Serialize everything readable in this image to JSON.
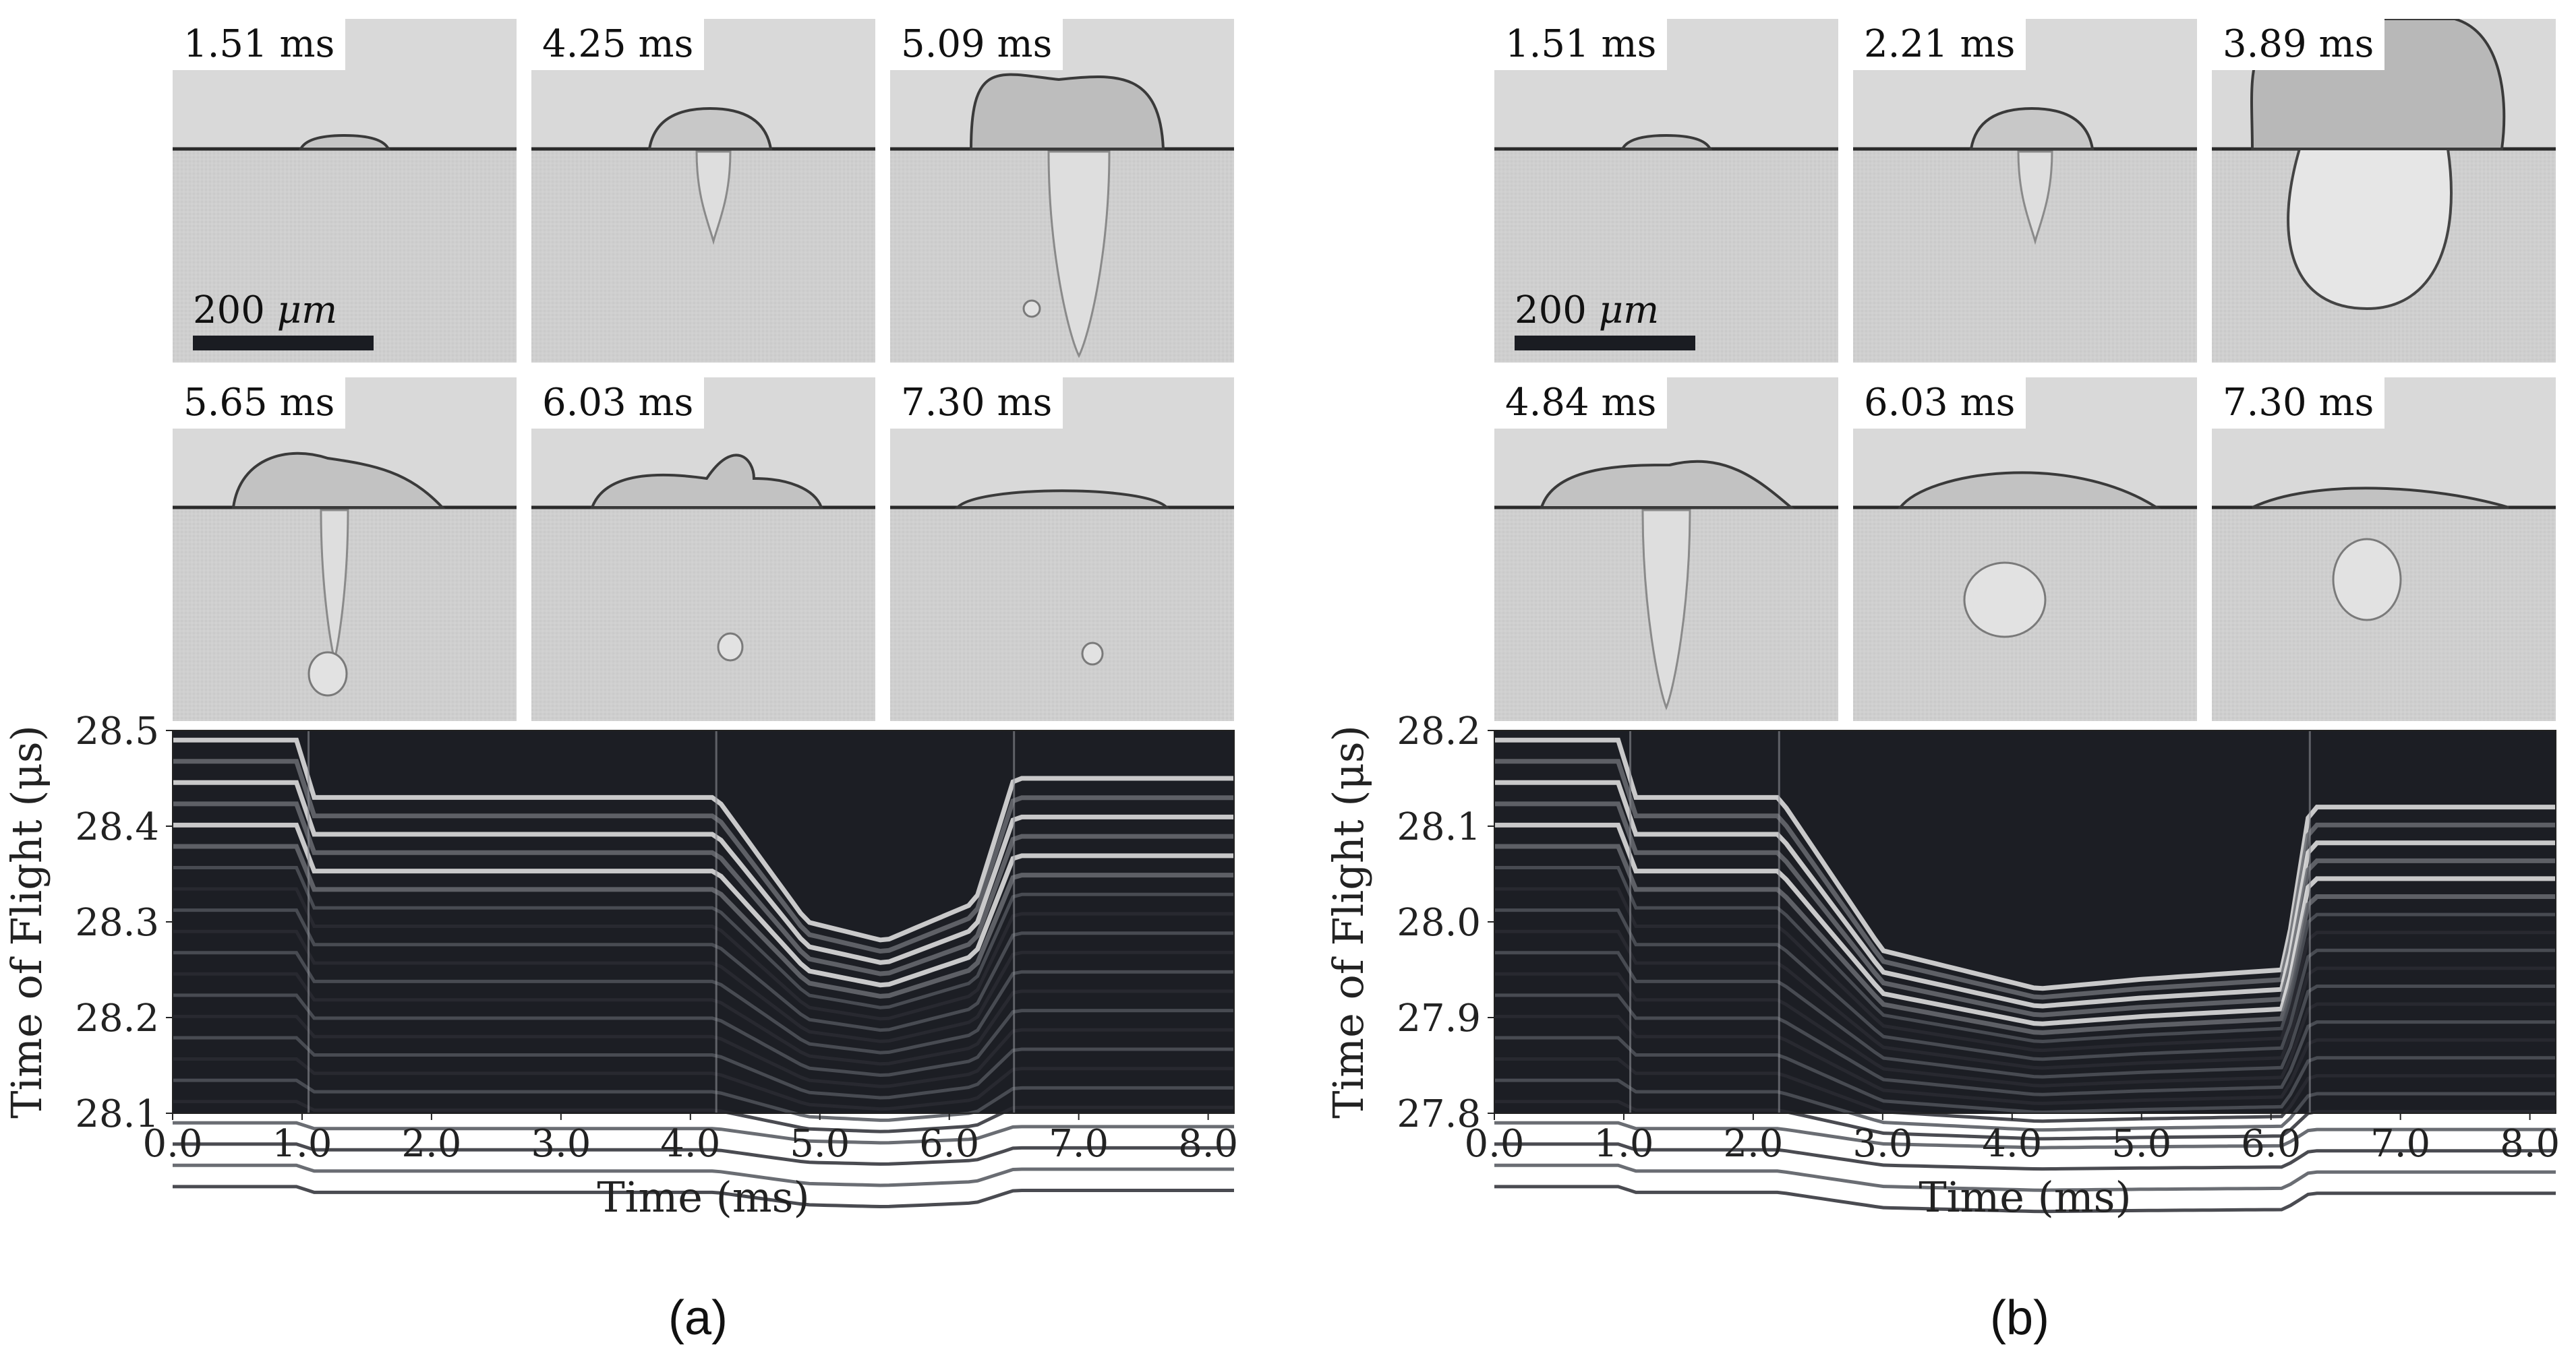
{
  "figure": {
    "panels": [
      {
        "id": "a",
        "caption": "(a)",
        "frames": [
          {
            "time_label": "1.51 ms",
            "scene": "small-bump"
          },
          {
            "time_label": "4.25 ms",
            "scene": "bubble-short-tail"
          },
          {
            "time_label": "5.09 ms",
            "scene": "big-bubble-long-tail"
          },
          {
            "time_label": "5.65 ms",
            "scene": "flat-bumps-droplet"
          },
          {
            "time_label": "6.03 ms",
            "scene": "flat-bumps-small-droplet"
          },
          {
            "time_label": "7.30 ms",
            "scene": "flat-small-droplet"
          }
        ],
        "scale_bar": {
          "label_value": "200",
          "label_unit": "μm"
        }
      },
      {
        "id": "b",
        "caption": "(b)",
        "frames": [
          {
            "time_label": "1.51 ms",
            "scene": "small-bump"
          },
          {
            "time_label": "2.21 ms",
            "scene": "bubble-short-tail"
          },
          {
            "time_label": "3.89 ms",
            "scene": "huge-cavity"
          },
          {
            "time_label": "4.84 ms",
            "scene": "flat-bumps-long-tail"
          },
          {
            "time_label": "6.03 ms",
            "scene": "flat-big-droplet"
          },
          {
            "time_label": "7.30 ms",
            "scene": "flat-big-droplet-2"
          }
        ],
        "scale_bar": {
          "label_value": "200",
          "label_unit": "μm"
        }
      }
    ]
  },
  "chart_data": [
    {
      "type": "heatmap",
      "panel": "a",
      "xlabel": "Time (ms)",
      "ylabel": "Time of Flight (μs)",
      "xlim": [
        0.0,
        8.2
      ],
      "ylim": [
        28.1,
        28.5
      ],
      "xticks": [
        "0.0",
        "1.0",
        "2.0",
        "3.0",
        "4.0",
        "5.0",
        "6.0",
        "7.0",
        "8.0"
      ],
      "xtick_values": [
        0,
        1,
        2,
        3,
        4,
        5,
        6,
        7,
        8
      ],
      "yticks": [
        "28.1",
        "28.2",
        "28.3",
        "28.4",
        "28.5"
      ],
      "ytick_values": [
        28.1,
        28.2,
        28.3,
        28.4,
        28.5
      ],
      "colormap": "grayscale",
      "events_ms": [
        1.05,
        4.2,
        6.5
      ],
      "surface_tof_profile": [
        [
          0,
          28.49
        ],
        [
          1.0,
          28.49
        ],
        [
          1.05,
          28.43
        ],
        [
          4.2,
          28.43
        ],
        [
          4.9,
          28.3
        ],
        [
          5.5,
          28.28
        ],
        [
          6.2,
          28.32
        ],
        [
          6.5,
          28.45
        ],
        [
          8.2,
          28.45
        ]
      ]
    },
    {
      "type": "heatmap",
      "panel": "b",
      "xlabel": "Time (ms)",
      "ylabel": "Time of Flight (μs)",
      "xlim": [
        0.0,
        8.2
      ],
      "ylim": [
        27.8,
        28.2
      ],
      "xticks": [
        "0.0",
        "1.0",
        "2.0",
        "3.0",
        "4.0",
        "5.0",
        "6.0",
        "7.0",
        "8.0"
      ],
      "xtick_values": [
        0,
        1,
        2,
        3,
        4,
        5,
        6,
        7,
        8
      ],
      "yticks": [
        "27.8",
        "27.9",
        "28.0",
        "28.1",
        "28.2"
      ],
      "ytick_values": [
        27.8,
        27.9,
        28.0,
        28.1,
        28.2
      ],
      "colormap": "grayscale",
      "events_ms": [
        1.05,
        2.2,
        6.3
      ],
      "surface_tof_profile": [
        [
          0,
          28.19
        ],
        [
          1.0,
          28.19
        ],
        [
          1.05,
          28.13
        ],
        [
          2.2,
          28.13
        ],
        [
          3.0,
          27.97
        ],
        [
          4.2,
          27.93
        ],
        [
          5.0,
          27.94
        ],
        [
          6.1,
          27.95
        ],
        [
          6.3,
          28.12
        ],
        [
          8.2,
          28.12
        ]
      ]
    }
  ]
}
